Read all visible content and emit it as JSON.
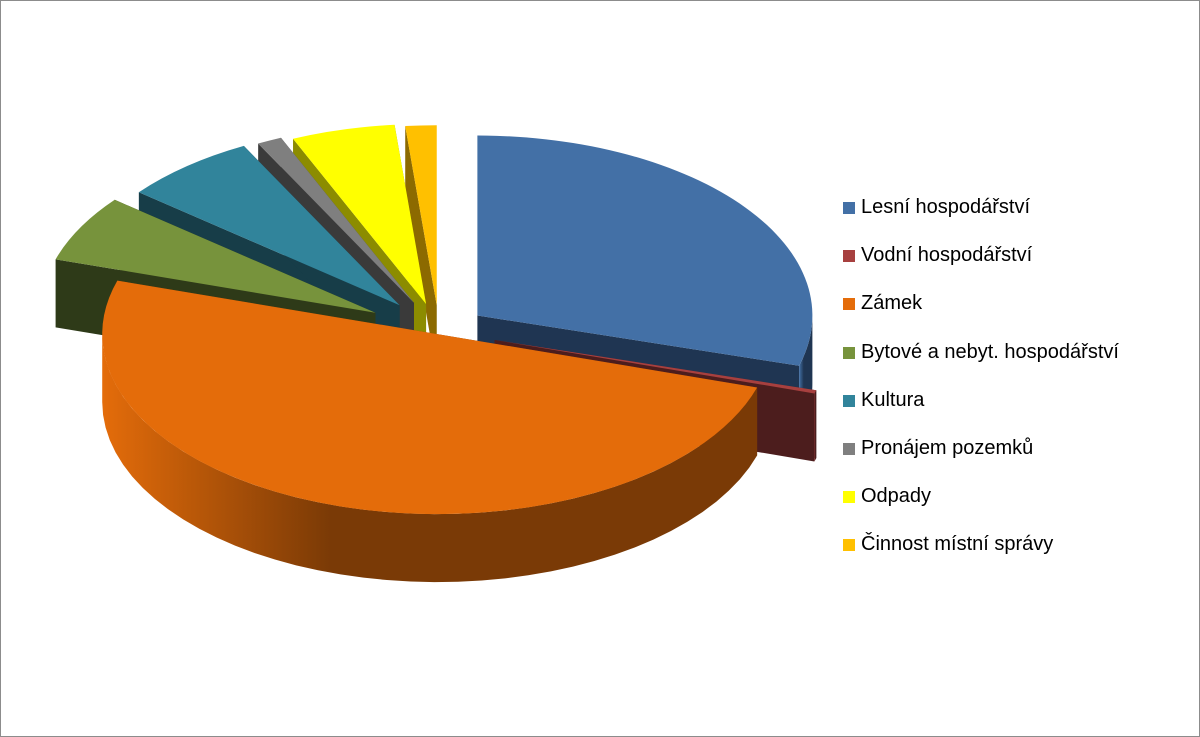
{
  "chart_data": {
    "type": "pie",
    "style": "3d-exploded",
    "title": "",
    "legend_position": "right",
    "categories": [
      "Lesní hospodářství",
      "Vodní hospodářství",
      "Zámek",
      "Bytové a nebyt. hospodářství",
      "Kultura",
      "Pronájem pozemků",
      "Odpady",
      "Činnost místní správy"
    ],
    "values": [
      29.5,
      0.3,
      50.0,
      6.0,
      6.5,
      1.2,
      5.0,
      1.5
    ],
    "colors": [
      "#4370A6",
      "#A7403F",
      "#E46C0A",
      "#77933C",
      "#31849B",
      "#7F7F7F",
      "#FFFF00",
      "#FFC000"
    ],
    "side_colors": [
      "#1F3552",
      "#4C1D1D",
      "#7A3A06",
      "#2E3A18",
      "#173D48",
      "#3A3A3A",
      "#8C8C00",
      "#8C6A00"
    ]
  }
}
